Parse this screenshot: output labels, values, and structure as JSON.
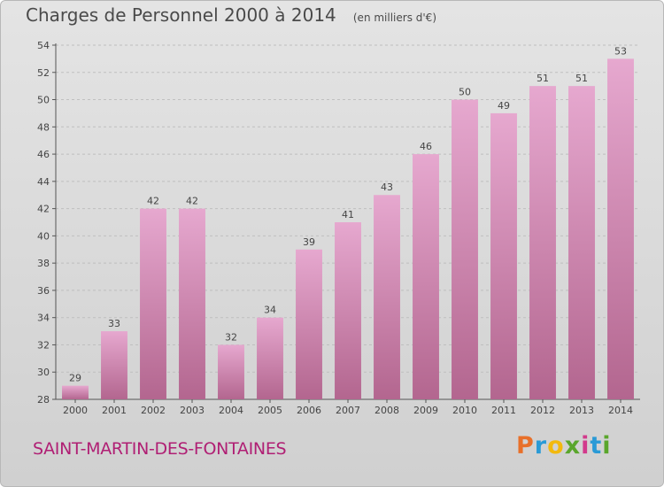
{
  "title": "Charges de Personnel 2000 à 2014",
  "subtitle": "(en milliers d'€)",
  "commune": "SAINT-MARTIN-DES-FONTAINES",
  "brand": {
    "letters": [
      "P",
      "r",
      "o",
      "x",
      "i",
      "t",
      "i"
    ],
    "colors": [
      "#e8702a",
      "#2a9ad6",
      "#f2b90f",
      "#5aa62c",
      "#d23a8c",
      "#2a9ad6",
      "#5aa62c"
    ]
  },
  "colors": {
    "bar_top": "#e6a8cf",
    "bar_bottom": "#b3668f",
    "axis_text": "#444444",
    "commune_text": "#b01f74"
  },
  "chart_data": {
    "type": "bar",
    "categories": [
      "2000",
      "2001",
      "2002",
      "2003",
      "2004",
      "2005",
      "2006",
      "2007",
      "2008",
      "2009",
      "2010",
      "2011",
      "2012",
      "2013",
      "2014"
    ],
    "values": [
      29,
      33,
      42,
      42,
      32,
      34,
      39,
      41,
      43,
      46,
      50,
      49,
      51,
      51,
      53
    ],
    "ylim": [
      28,
      54
    ],
    "yticks": [
      28,
      30,
      32,
      34,
      36,
      38,
      40,
      42,
      44,
      46,
      48,
      50,
      52,
      54
    ],
    "grid": true,
    "legend": "none"
  }
}
